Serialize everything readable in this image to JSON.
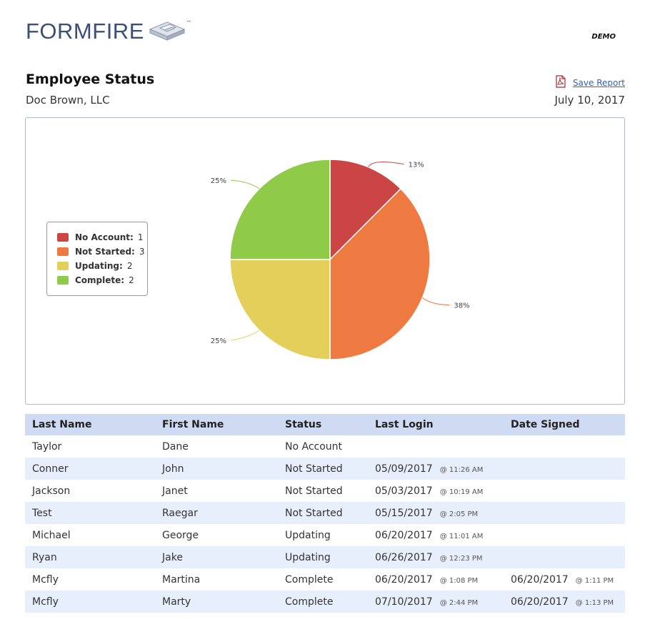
{
  "header": {
    "logo_text": "FORMFIRE",
    "logo_tm": "™",
    "demo_label": "DEMO"
  },
  "report": {
    "title": "Employee Status",
    "company": "Doc Brown, LLC",
    "date": "July 10, 2017",
    "save_label": "Save Report",
    "save_icon": "pdf-icon"
  },
  "chart_data": {
    "type": "pie",
    "categories": [
      "No Account",
      "Not Started",
      "Updating",
      "Complete"
    ],
    "values": [
      1,
      3,
      2,
      2
    ],
    "percent_labels": [
      "13%",
      "38%",
      "25%",
      "25%"
    ],
    "colors": [
      "#cc4545",
      "#ee7a42",
      "#e4cf5a",
      "#8fcb48"
    ],
    "legend": {
      "placement": "left",
      "items": [
        {
          "label": "No Account:",
          "value": "1"
        },
        {
          "label": "Not Started:",
          "value": "3"
        },
        {
          "label": "Updating:",
          "value": "2"
        },
        {
          "label": "Complete:",
          "value": "2"
        }
      ]
    }
  },
  "table": {
    "headers": [
      "Last Name",
      "First Name",
      "Status",
      "Last Login",
      "Date Signed"
    ],
    "rows": [
      {
        "last": "Taylor",
        "first": "Dane",
        "status": "No Account",
        "login_date": "",
        "login_time": "",
        "signed_date": "",
        "signed_time": ""
      },
      {
        "last": "Conner",
        "first": "John",
        "status": "Not Started",
        "login_date": "05/09/2017",
        "login_time": "@ 11:26 AM",
        "signed_date": "",
        "signed_time": ""
      },
      {
        "last": "Jackson",
        "first": "Janet",
        "status": "Not Started",
        "login_date": "05/03/2017",
        "login_time": "@ 10:19 AM",
        "signed_date": "",
        "signed_time": ""
      },
      {
        "last": "Test",
        "first": "Raegar",
        "status": "Not Started",
        "login_date": "05/15/2017",
        "login_time": "@ 2:05 PM",
        "signed_date": "",
        "signed_time": ""
      },
      {
        "last": "Michael",
        "first": "George",
        "status": "Updating",
        "login_date": "06/20/2017",
        "login_time": "@ 11:01 AM",
        "signed_date": "",
        "signed_time": ""
      },
      {
        "last": "Ryan",
        "first": "Jake",
        "status": "Updating",
        "login_date": "06/26/2017",
        "login_time": "@ 12:23 PM",
        "signed_date": "",
        "signed_time": ""
      },
      {
        "last": "Mcfly",
        "first": "Martina",
        "status": "Complete",
        "login_date": "06/20/2017",
        "login_time": "@ 1:08 PM",
        "signed_date": "06/20/2017",
        "signed_time": "@ 1:11 PM"
      },
      {
        "last": "Mcfly",
        "first": "Marty",
        "status": "Complete",
        "login_date": "07/10/2017",
        "login_time": "@ 2:44 PM",
        "signed_date": "06/20/2017",
        "signed_time": "@ 1:13 PM"
      }
    ]
  }
}
